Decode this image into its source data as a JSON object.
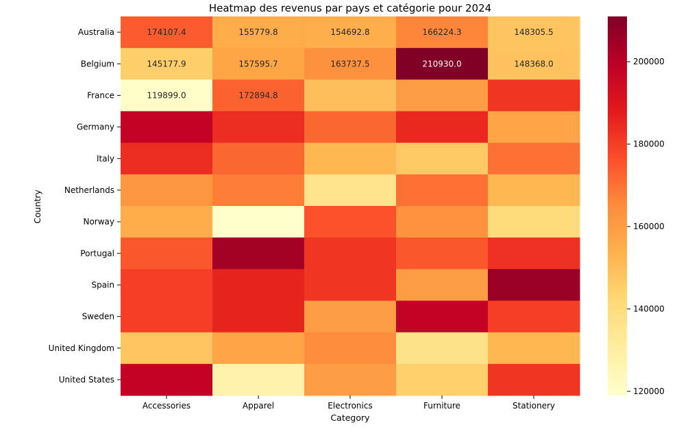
{
  "chart_data": {
    "type": "heatmap",
    "title": "Heatmap des revenus par pays et catégorie pour 2024",
    "xlabel": "Category",
    "ylabel": "Country",
    "x_categories": [
      "Accessories",
      "Apparel",
      "Electronics",
      "Furniture",
      "Stationery"
    ],
    "y_categories": [
      "Australia",
      "Belgium",
      "France",
      "Germany",
      "Italy",
      "Netherlands",
      "Norway",
      "Portugal",
      "Spain",
      "Sweden",
      "United Kingdom",
      "United States"
    ],
    "values": [
      [
        174107.4,
        155779.8,
        154692.8,
        166224.3,
        148305.5
      ],
      [
        145177.9,
        157595.7,
        163737.5,
        210930.0,
        148368.0
      ],
      [
        119899.0,
        172894.8,
        150000,
        160000,
        182000
      ],
      [
        198000,
        184000,
        172000,
        185000,
        158000
      ],
      [
        184000,
        172000,
        152000,
        147000,
        170000
      ],
      [
        162000,
        168000,
        136000,
        170000,
        152000
      ],
      [
        155000,
        119000,
        176000,
        163000,
        140000
      ],
      [
        175000,
        204000,
        182000,
        175000,
        183000
      ],
      [
        180000,
        186000,
        182000,
        160000,
        206000
      ],
      [
        180000,
        186000,
        160000,
        198000,
        180000
      ],
      [
        148000,
        158000,
        165000,
        137000,
        152000
      ],
      [
        198000,
        127000,
        160000,
        145000,
        182000
      ]
    ],
    "annotations": [
      [
        "174107.4",
        "155779.8",
        "154692.8",
        "166224.3",
        "148305.5"
      ],
      [
        "145177.9",
        "157595.7",
        "163737.5",
        "210930.0",
        "148368.0"
      ],
      [
        "119899.0",
        "172894.8",
        "",
        "",
        ""
      ],
      [
        "",
        "",
        "",
        "",
        ""
      ],
      [
        "",
        "",
        "",
        "",
        ""
      ],
      [
        "",
        "",
        "",
        "",
        ""
      ],
      [
        "",
        "",
        "",
        "",
        ""
      ],
      [
        "",
        "",
        "",
        "",
        ""
      ],
      [
        "",
        "",
        "",
        "",
        ""
      ],
      [
        "",
        "",
        "",
        "",
        ""
      ],
      [
        "",
        "",
        "",
        "",
        ""
      ],
      [
        "",
        "",
        "",
        "",
        ""
      ]
    ],
    "colorscale": "YlOrRd",
    "colorbar": {
      "min": 119000,
      "max": 211000,
      "ticks": [
        120000,
        140000,
        160000,
        180000,
        200000
      ]
    }
  }
}
